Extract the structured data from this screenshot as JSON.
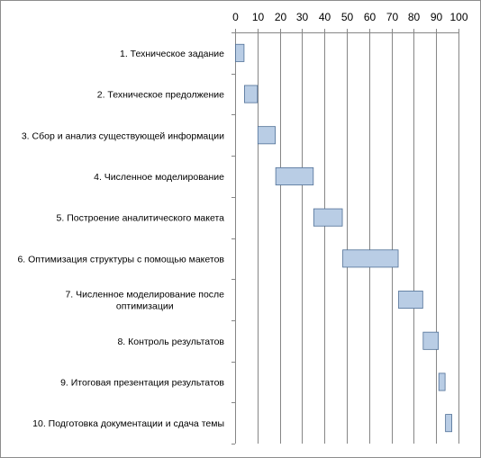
{
  "chart_data": {
    "type": "bar",
    "orientation": "horizontal",
    "subtype": "gantt",
    "title": "",
    "xlabel": "",
    "ylabel": "",
    "xlim": [
      0,
      100
    ],
    "x_ticks": [
      0,
      10,
      20,
      30,
      40,
      50,
      60,
      70,
      80,
      90,
      100
    ],
    "x_axis_position": "top",
    "grid": "vertical",
    "legend": "none",
    "categories": [
      "1. Техническое задание",
      "2. Техническое предолжение",
      "3. Сбор и анализ существующей информации",
      "4. Численное моделирование",
      "5. Построение аналитического макета",
      "6. Оптимизация структуры с помощью макетов",
      "7. Численное моделирование после оптимизации",
      "8. Контроль результатов",
      "9. Итоговая презентация результатов",
      "10. Подготовка документации и сдача темы"
    ],
    "category_label_lines": [
      [
        "1. Техническое задание"
      ],
      [
        "2. Техническое предолжение"
      ],
      [
        "3. Сбор и анализ существующей информации"
      ],
      [
        "4. Численное моделирование"
      ],
      [
        "5. Построение аналитического макета"
      ],
      [
        "6. Оптимизация структуры с помощью макетов"
      ],
      [
        "7. Численное моделирование после",
        "оптимизации"
      ],
      [
        "8. Контроль результатов"
      ],
      [
        "9. Итоговая презентация результатов"
      ],
      [
        "10. Подготовка документации и сдача темы"
      ]
    ],
    "series": [
      {
        "start": [
          0,
          4,
          10,
          18,
          35,
          48,
          73,
          84,
          91,
          94
        ],
        "end": [
          4,
          10,
          18,
          35,
          48,
          73,
          84,
          91,
          94,
          97
        ]
      }
    ],
    "colors": {
      "bar_fill": "#b9cde5",
      "bar_stroke": "#4f6f96",
      "grid": "#868686",
      "axis": "#868686"
    }
  }
}
